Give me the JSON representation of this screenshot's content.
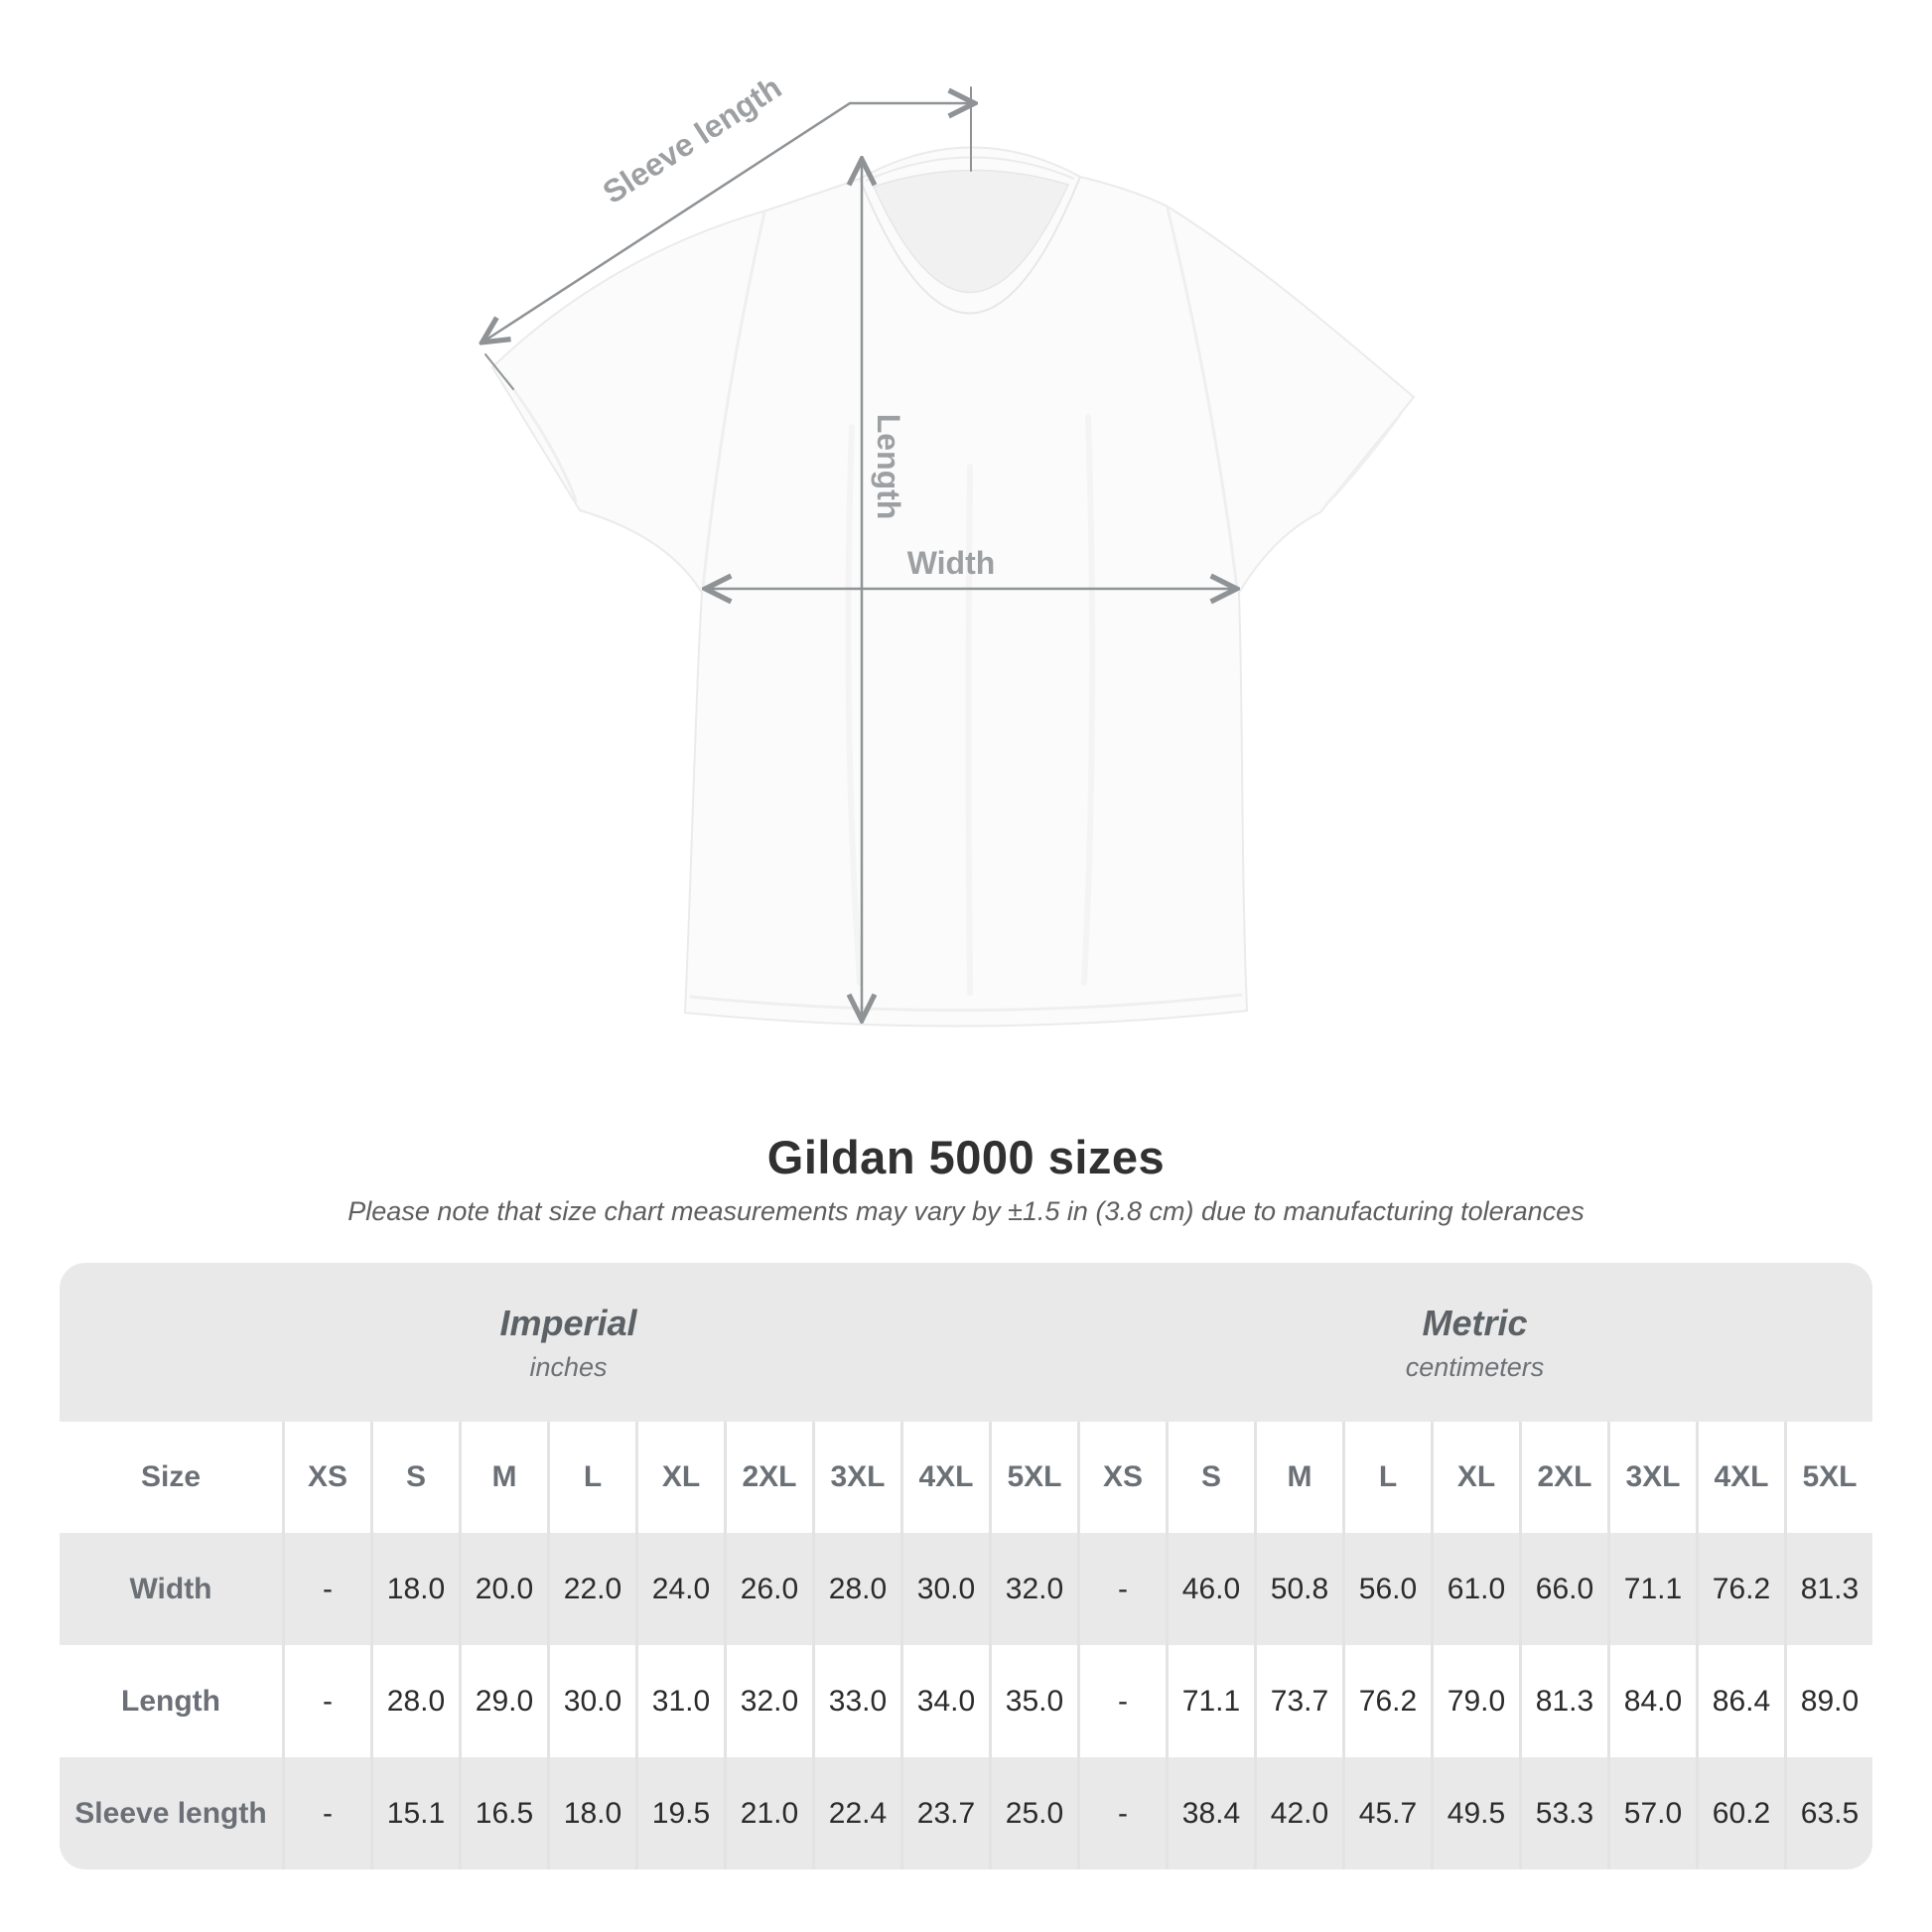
{
  "diagram": {
    "labels": {
      "sleeve": "Sleeve length",
      "length": "Length",
      "width": "Width"
    },
    "line_color": "#8f9396",
    "label_color": "#9da0a3"
  },
  "title": "Gildan 5000 sizes",
  "subtitle": "Please note that size chart measurements may vary by ±1.5 in (3.8 cm) due to manufacturing tolerances",
  "colors": {
    "table_band_bg": "#e9e9e9",
    "table_stripe_bg": "#e9e9e9",
    "column_separator": "#e3e3e3",
    "header_text": "#6b7076",
    "value_text": "#2b2b2b"
  },
  "table": {
    "size_label": "Size",
    "groups": [
      {
        "name": "Imperial",
        "unit": "inches"
      },
      {
        "name": "Metric",
        "unit": "centimeters"
      }
    ],
    "sizes": [
      "XS",
      "S",
      "M",
      "L",
      "XL",
      "2XL",
      "3XL",
      "4XL",
      "5XL"
    ],
    "rows": [
      {
        "label": "Width",
        "imperial": [
          "-",
          "18.0",
          "20.0",
          "22.0",
          "24.0",
          "26.0",
          "28.0",
          "30.0",
          "32.0"
        ],
        "metric": [
          "-",
          "46.0",
          "50.8",
          "56.0",
          "61.0",
          "66.0",
          "71.1",
          "76.2",
          "81.3"
        ]
      },
      {
        "label": "Length",
        "imperial": [
          "-",
          "28.0",
          "29.0",
          "30.0",
          "31.0",
          "32.0",
          "33.0",
          "34.0",
          "35.0"
        ],
        "metric": [
          "-",
          "71.1",
          "73.7",
          "76.2",
          "79.0",
          "81.3",
          "84.0",
          "86.4",
          "89.0"
        ]
      },
      {
        "label": "Sleeve length",
        "imperial": [
          "-",
          "15.1",
          "16.5",
          "18.0",
          "19.5",
          "21.0",
          "22.4",
          "23.7",
          "25.0"
        ],
        "metric": [
          "-",
          "38.4",
          "42.0",
          "45.7",
          "49.5",
          "53.3",
          "57.0",
          "60.2",
          "63.5"
        ]
      }
    ]
  }
}
